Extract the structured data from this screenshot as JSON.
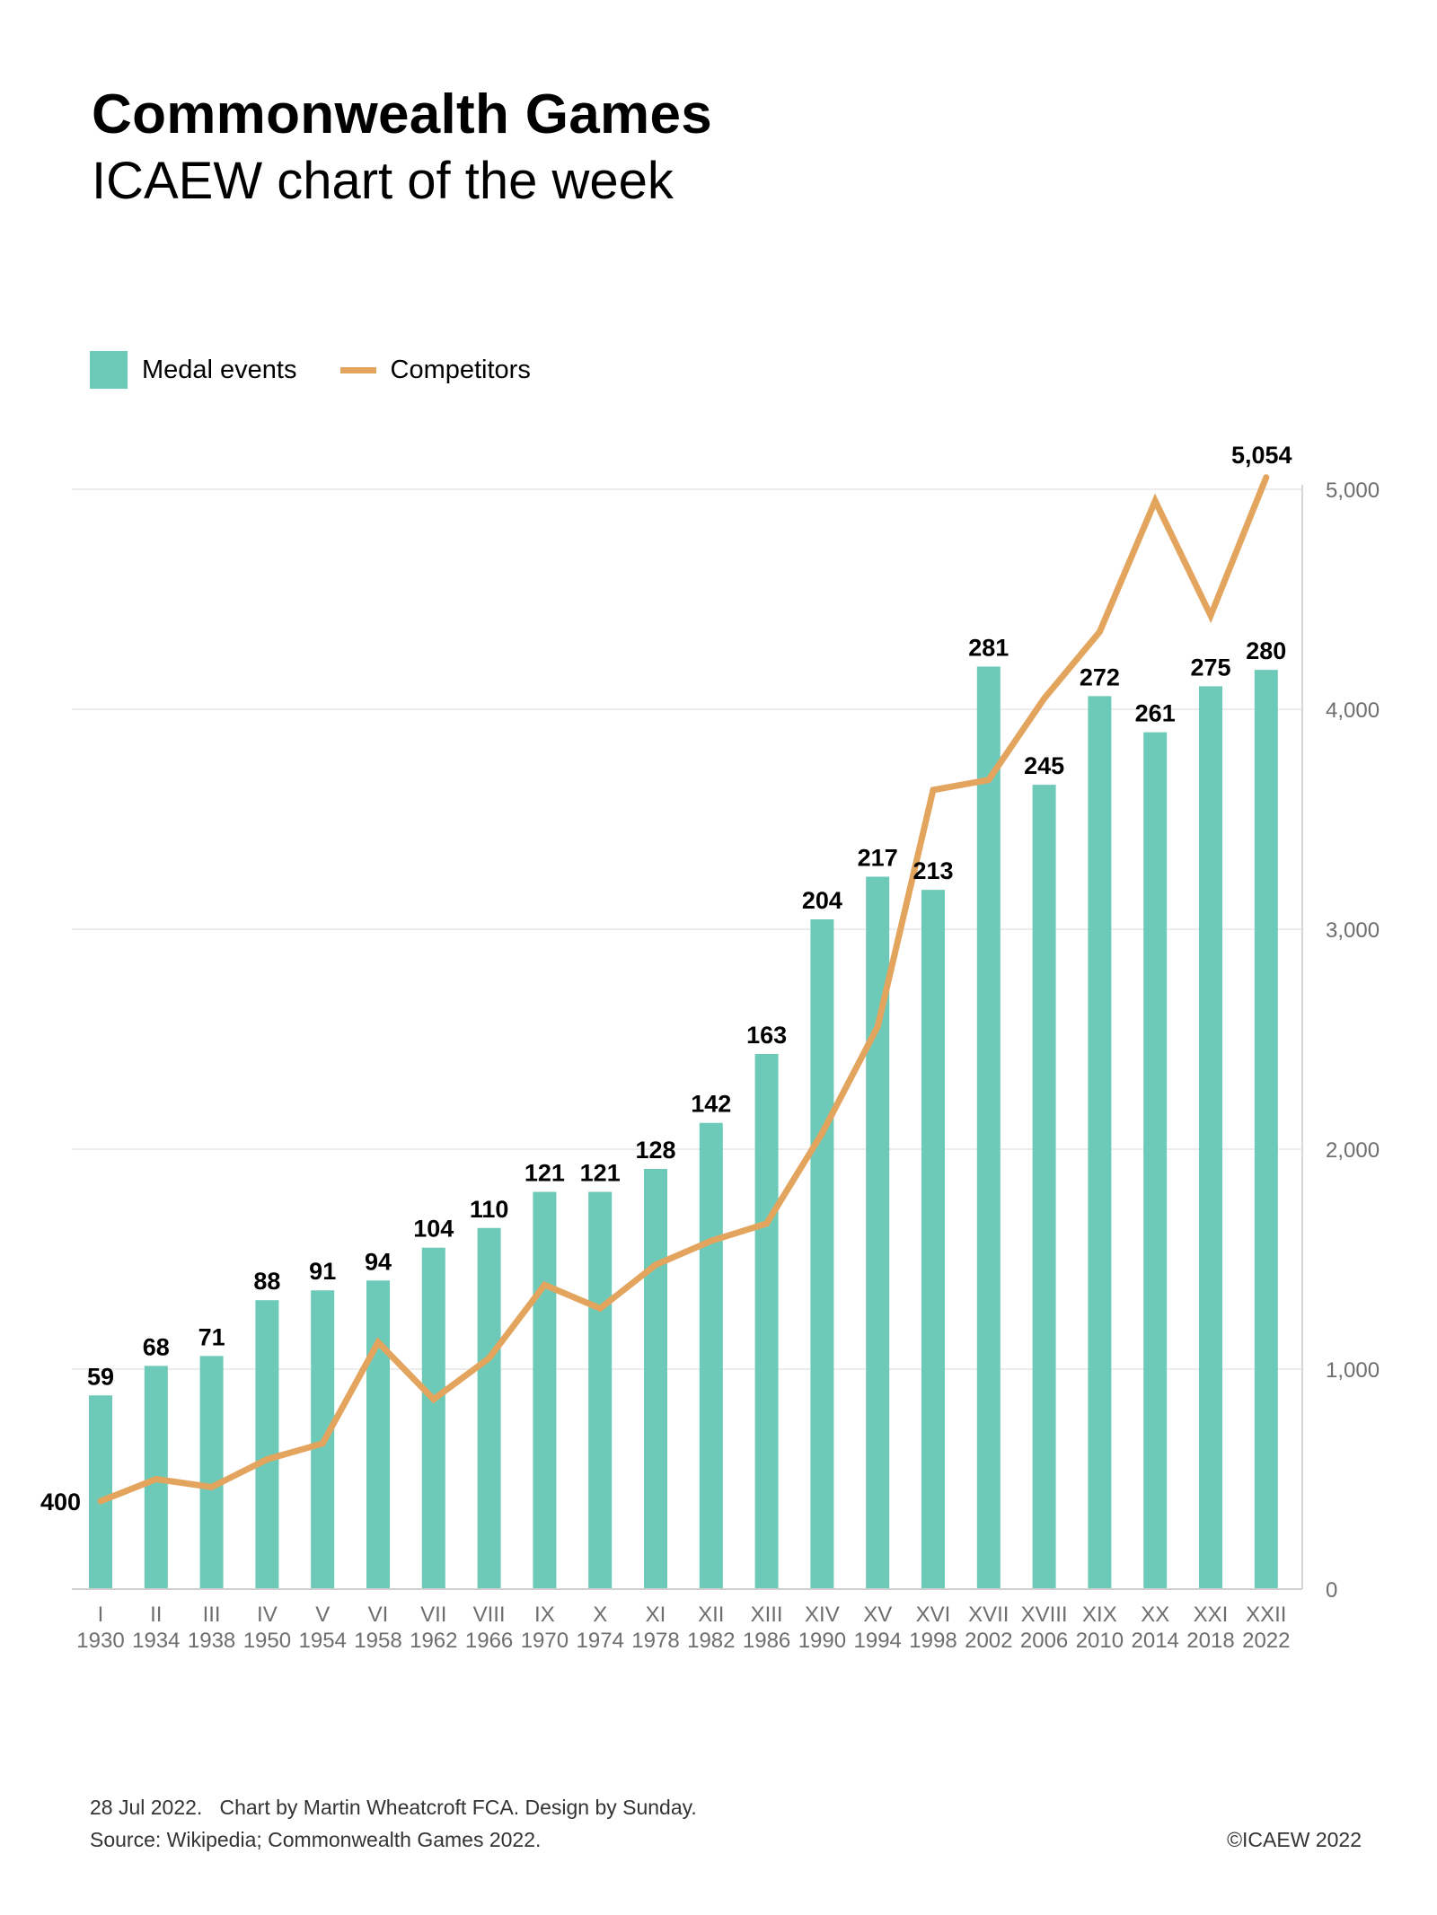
{
  "header": {
    "title": "Commonwealth Games",
    "subtitle": "ICAEW chart of the week"
  },
  "legend": {
    "bar_label": "Medal events",
    "line_label": "Competitors"
  },
  "colors": {
    "bars": "#6ECAB8",
    "line": "#E3A45E",
    "grid": "#E6E6E6",
    "axis_text": "#6E6E6E"
  },
  "footer": {
    "line1": "28 Jul 2022.   Chart by Martin Wheatcroft FCA. Design by Sunday.",
    "line2": "Source: Wikipedia; Commonwealth Games 2022.",
    "copyright": "©ICAEW 2022"
  },
  "chart_data": {
    "type": "bar",
    "title": "Commonwealth Games",
    "subtitle": "ICAEW chart of the week",
    "categories": [
      "I",
      "II",
      "III",
      "IV",
      "V",
      "VI",
      "VII",
      "VIII",
      "IX",
      "X",
      "XI",
      "XII",
      "XIII",
      "XIV",
      "XV",
      "XVI",
      "XVII",
      "XVIII",
      "XIX",
      "XX",
      "XXI",
      "XXII"
    ],
    "category_years": [
      "1930",
      "1934",
      "1938",
      "1950",
      "1954",
      "1958",
      "1962",
      "1966",
      "1970",
      "1974",
      "1978",
      "1982",
      "1986",
      "1990",
      "1994",
      "1998",
      "2002",
      "2006",
      "2010",
      "2014",
      "2018",
      "2022"
    ],
    "series": [
      {
        "name": "Medal events",
        "type": "bar",
        "axis": "hidden-left",
        "values": [
          59,
          68,
          71,
          88,
          91,
          94,
          104,
          110,
          121,
          121,
          128,
          142,
          163,
          204,
          217,
          213,
          281,
          245,
          272,
          261,
          275,
          280
        ],
        "data_labels": [
          "59",
          "68",
          "71",
          "88",
          "91",
          "94",
          "104",
          "110",
          "121",
          "121",
          "128",
          "142",
          "163",
          "204",
          "217",
          "213",
          "281",
          "245",
          "272",
          "261",
          "275",
          "280"
        ]
      },
      {
        "name": "Competitors",
        "type": "line",
        "axis": "right",
        "values": [
          400,
          500,
          464,
          590,
          662,
          1122,
          863,
          1050,
          1383,
          1276,
          1474,
          1583,
          1662,
          2073,
          2557,
          3633,
          3679,
          4049,
          4352,
          4947,
          4426,
          5054
        ],
        "first_label": "400",
        "last_label": "5,054"
      }
    ],
    "right_axis": {
      "ticks": [
        0,
        1000,
        2000,
        3000,
        4000,
        5000
      ],
      "tick_labels": [
        "0",
        "1,000",
        "2,000",
        "3,000",
        "4,000",
        "5,000"
      ],
      "range": [
        0,
        5000
      ]
    },
    "bar_axis_range": [
      0,
      335
    ],
    "grid": true,
    "legend_position": "top-left",
    "xlabel": "",
    "ylabel": ""
  }
}
